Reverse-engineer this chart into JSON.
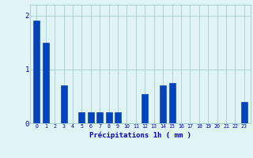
{
  "values": [
    1.9,
    1.5,
    0,
    0.7,
    0,
    0.2,
    0.2,
    0.2,
    0.2,
    0.2,
    0,
    0,
    0.55,
    0,
    0.7,
    0.75,
    0,
    0,
    0,
    0,
    0,
    0,
    0,
    0.4
  ],
  "bar_color": "#0044bb",
  "bar_edge_color": "#0033aa",
  "background_color": "#dff4f4",
  "grid_color": "#aacccc",
  "xlabel": "Précipitations 1h ( mm )",
  "xlabel_color": "#0000bb",
  "tick_color": "#0000bb",
  "ylabel_ticks": [
    0,
    1,
    2
  ],
  "ylim": [
    0,
    2.2
  ],
  "figsize": [
    3.2,
    2.0
  ],
  "dpi": 100
}
